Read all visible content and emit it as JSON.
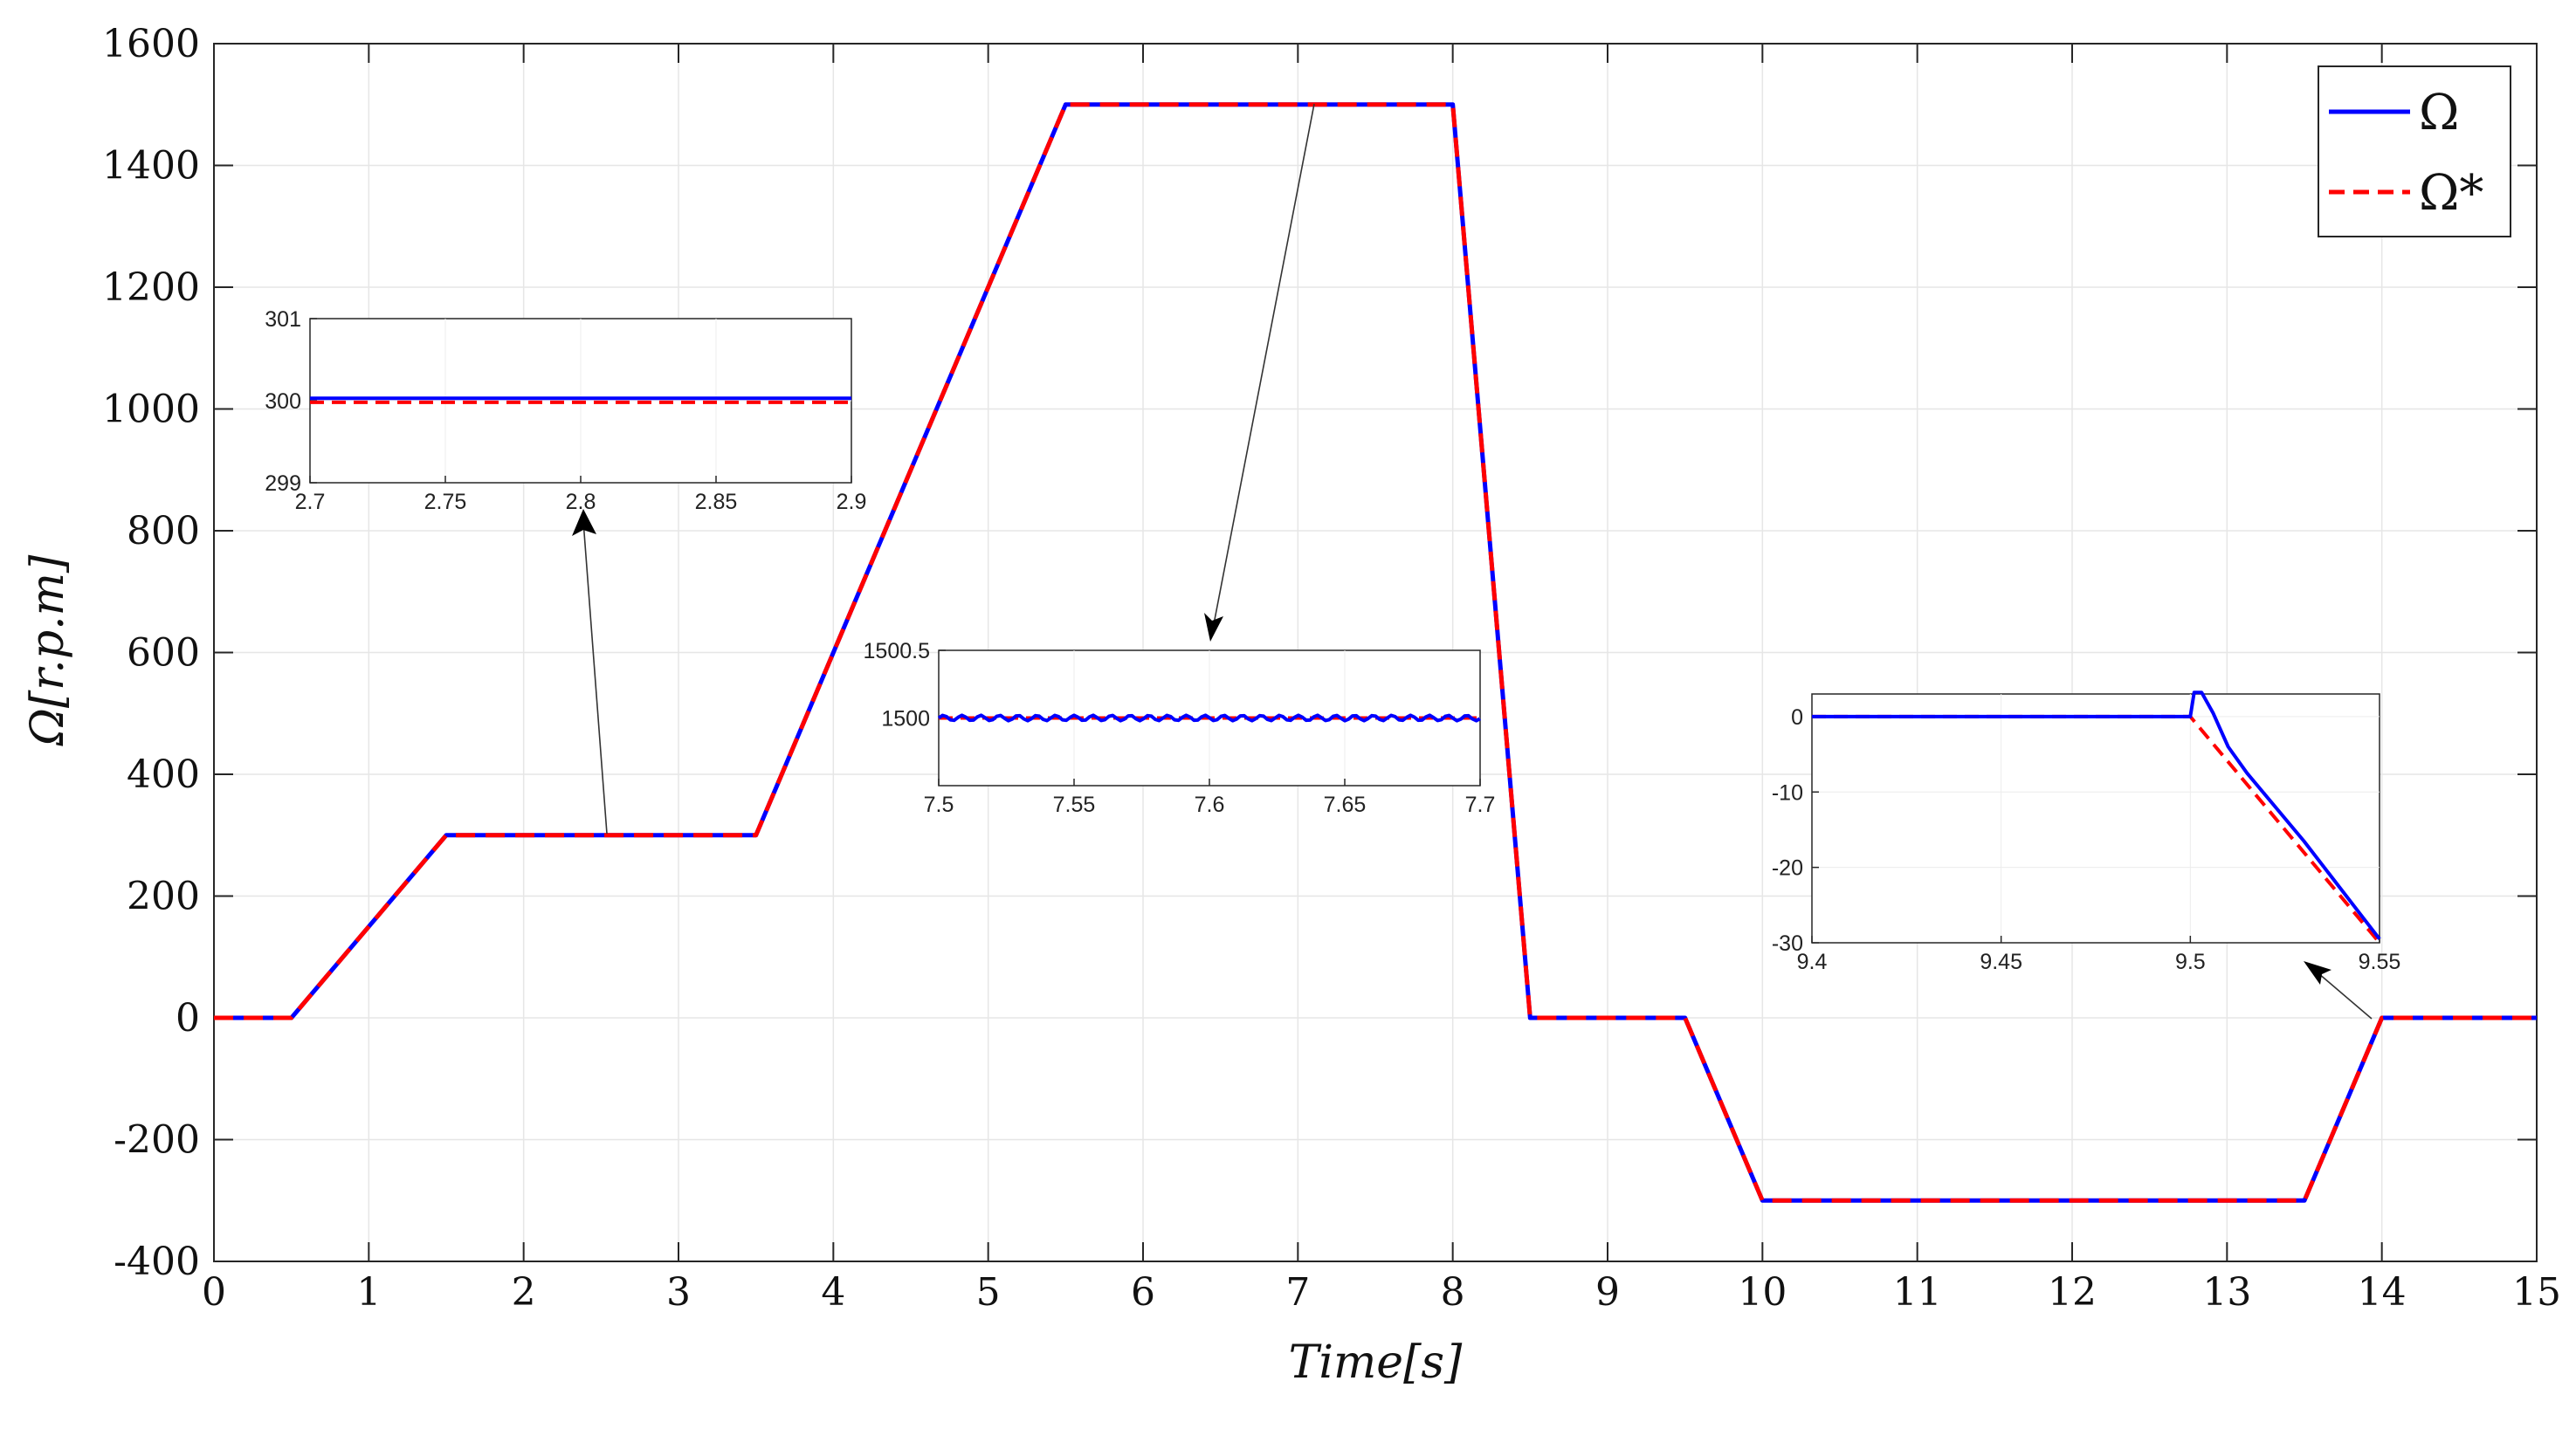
{
  "chart_data": [
    {
      "type": "line",
      "xlabel": "Time[s]",
      "ylabel": "Ω[r.p.m]",
      "xlim": [
        0,
        15
      ],
      "ylim": [
        -400,
        1600
      ],
      "xticks": [
        "0",
        "1",
        "2",
        "3",
        "4",
        "5",
        "6",
        "7",
        "8",
        "9",
        "10",
        "11",
        "12",
        "13",
        "14",
        "15"
      ],
      "yticks": [
        "-400",
        "-200",
        "0",
        "200",
        "400",
        "600",
        "800",
        "1000",
        "1200",
        "1400",
        "1600"
      ],
      "grid": true,
      "legend_position": "top-right",
      "series": [
        {
          "name": "Ω",
          "color": "#0000ff",
          "style": "solid",
          "x": [
            0,
            0.5,
            1.5,
            3.5,
            5.5,
            8.0,
            8.5,
            9.5,
            10.0,
            13.5,
            14.0,
            15.0
          ],
          "y": [
            0,
            0,
            300,
            300,
            1500,
            1500,
            0,
            0,
            -300,
            -300,
            0,
            0
          ]
        },
        {
          "name": "Ω*",
          "color": "#ff0000",
          "style": "dashed",
          "x": [
            0,
            0.5,
            1.5,
            3.5,
            5.5,
            8.0,
            8.5,
            9.5,
            10.0,
            13.5,
            14.0,
            15.0
          ],
          "y": [
            0,
            0,
            300,
            300,
            1500,
            1500,
            0,
            0,
            -300,
            -300,
            0,
            0
          ]
        }
      ]
    },
    {
      "type": "line",
      "role": "inset",
      "xlim": [
        2.7,
        2.9
      ],
      "ylim": [
        299,
        301
      ],
      "xticks": [
        "2.7",
        "2.75",
        "2.8",
        "2.85",
        "2.9"
      ],
      "yticks": [
        "299",
        "300",
        "301"
      ],
      "series": [
        {
          "name": "Ω",
          "color": "#0000ff",
          "style": "solid",
          "x": [
            2.7,
            2.9
          ],
          "y": [
            300.03,
            300.03
          ]
        },
        {
          "name": "Ω*",
          "color": "#ff0000",
          "style": "dashed",
          "x": [
            2.7,
            2.9
          ],
          "y": [
            299.98,
            299.98
          ]
        }
      ]
    },
    {
      "type": "line",
      "role": "inset",
      "xlim": [
        7.5,
        7.7
      ],
      "ylim": [
        1499.5,
        1500.5
      ],
      "xticks": [
        "7.5",
        "7.55",
        "7.6",
        "7.65",
        "7.7"
      ],
      "yticks": [
        "1500",
        "1500.5"
      ],
      "series": [
        {
          "name": "Ω",
          "color": "#0000ff",
          "style": "solid",
          "x": [
            7.5,
            7.7
          ],
          "y": [
            1500.0,
            1500.0
          ]
        },
        {
          "name": "Ω*",
          "color": "#ff0000",
          "style": "dashed",
          "x": [
            7.5,
            7.7
          ],
          "y": [
            1500.0,
            1500.0
          ]
        }
      ]
    },
    {
      "type": "line",
      "role": "inset",
      "xlim": [
        9.4,
        9.55
      ],
      "ylim": [
        -30,
        3
      ],
      "xticks": [
        "9.4",
        "9.45",
        "9.5",
        "9.55"
      ],
      "yticks": [
        "-30",
        "-20",
        "-10",
        "0"
      ],
      "series": [
        {
          "name": "Ω",
          "color": "#0000ff",
          "style": "solid",
          "x": [
            9.4,
            9.5,
            9.501,
            9.503,
            9.506,
            9.51,
            9.515,
            9.53,
            9.55
          ],
          "y": [
            0,
            0,
            3.2,
            3.2,
            0.5,
            -4,
            -7.5,
            -16.5,
            -29.5
          ]
        },
        {
          "name": "Ω*",
          "color": "#ff0000",
          "style": "dashed",
          "x": [
            9.4,
            9.5,
            9.55
          ],
          "y": [
            0,
            0,
            -30
          ]
        }
      ]
    }
  ]
}
